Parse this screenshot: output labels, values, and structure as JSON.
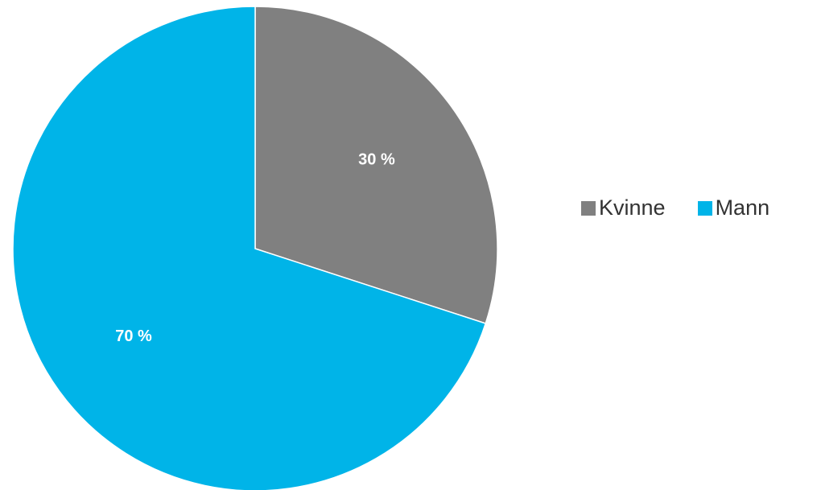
{
  "chart_data": {
    "type": "pie",
    "title": "",
    "categories": [
      "Kvinne",
      "Mann"
    ],
    "values": [
      30,
      70
    ],
    "value_labels": [
      "30 %",
      "70 %"
    ],
    "colors": [
      "#808080",
      "#00B4E8"
    ],
    "start_angle": "12 o'clock",
    "direction": "clockwise",
    "legend": {
      "placement": "right",
      "entries": [
        "Kvinne",
        "Mann"
      ]
    }
  }
}
